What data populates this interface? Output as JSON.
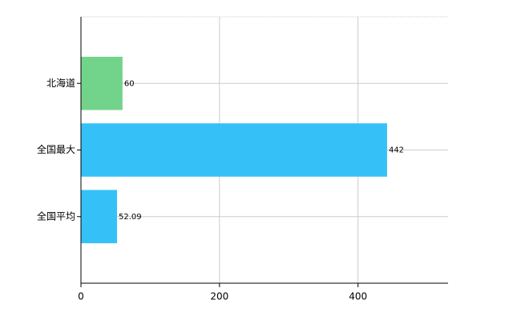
{
  "chart_data": {
    "type": "bar",
    "orientation": "horizontal",
    "categories": [
      "北海道",
      "全国最大",
      "全国平均"
    ],
    "values": [
      60,
      442,
      52.09
    ],
    "colors": [
      "#72d48a",
      "#35c1f7",
      "#35c1f7"
    ],
    "xlim": [
      0,
      530
    ],
    "xticks": [
      0,
      200,
      400
    ],
    "grid": true,
    "data_labels": true
  }
}
